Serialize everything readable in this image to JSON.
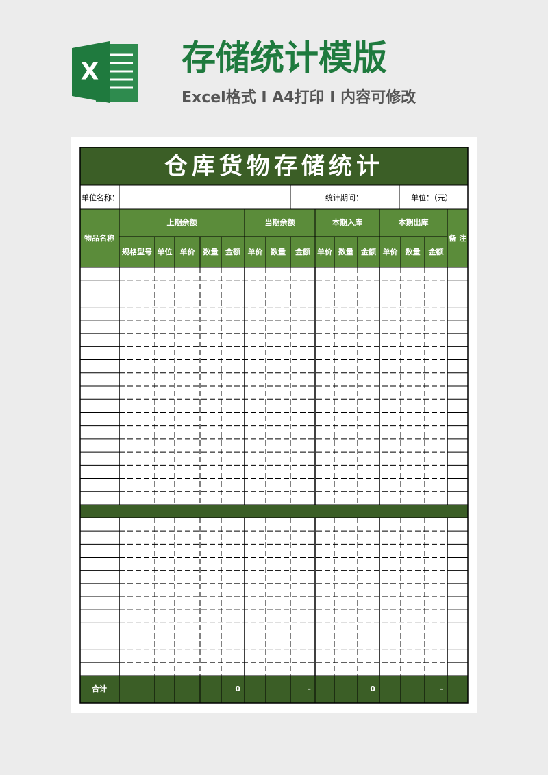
{
  "header": {
    "title": "存储统计模版",
    "subtitle": "Excel格式 I A4打印 I 内容可修改",
    "icon_letter": "X"
  },
  "table": {
    "title": "仓库货物存储统计",
    "info": {
      "unit_name": "单位名称：",
      "period": "统计期间：",
      "currency": "单位：（元）"
    },
    "item_column": "物品名称",
    "remark_column": "备 注",
    "groups": [
      {
        "label": "上期余额",
        "columns": [
          "规格型号",
          "单位",
          "单价",
          "数量",
          "金额"
        ]
      },
      {
        "label": "当期余额",
        "columns": [
          "单价",
          "数量",
          "金额"
        ]
      },
      {
        "label": "本期入库",
        "columns": [
          "单价",
          "数量",
          "金额"
        ]
      },
      {
        "label": "本期出库",
        "columns": [
          "单价",
          "数量",
          "金额"
        ]
      }
    ],
    "total": {
      "label": "合计",
      "values": [
        0,
        "-",
        0,
        "-"
      ]
    }
  }
}
